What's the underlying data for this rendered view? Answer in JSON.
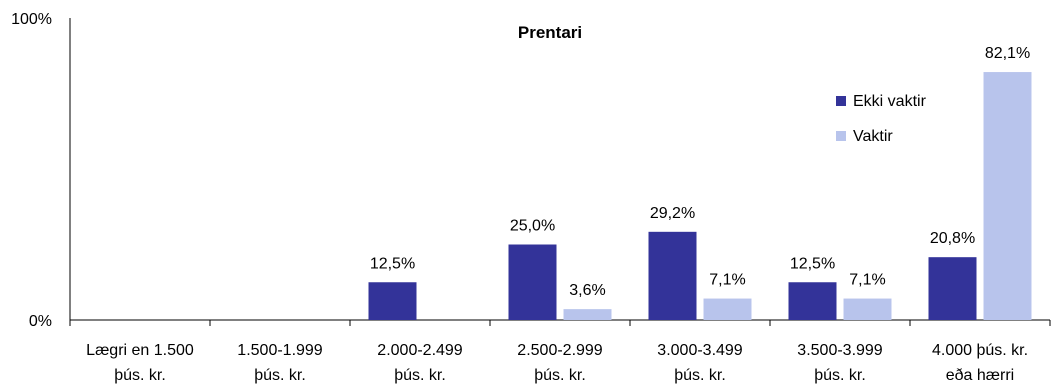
{
  "chart_data": {
    "type": "bar",
    "title": "Prentari",
    "categories": [
      [
        "Lægri en 1.500",
        "þús. kr."
      ],
      [
        "1.500-1.999",
        "þús. kr."
      ],
      [
        "2.000-2.499",
        "þús. kr."
      ],
      [
        "2.500-2.999",
        "þús. kr."
      ],
      [
        "3.000-3.499",
        "þús. kr."
      ],
      [
        "3.500-3.999",
        "þús. kr."
      ],
      [
        "4.000 þús. kr.",
        "eða hærri"
      ]
    ],
    "series": [
      {
        "name": "Ekki vaktir",
        "color": "#333399",
        "values": [
          null,
          null,
          12.5,
          25.0,
          29.2,
          12.5,
          20.8
        ],
        "labels": [
          "",
          "",
          "12,5%",
          "25,0%",
          "29,2%",
          "12,5%",
          "20,8%"
        ]
      },
      {
        "name": "Vaktir",
        "color": "#b8c4ec",
        "values": [
          null,
          null,
          null,
          3.6,
          7.1,
          7.1,
          82.1
        ],
        "labels": [
          "",
          "",
          "",
          "3,6%",
          "7,1%",
          "7,1%",
          "82,1%"
        ]
      }
    ],
    "y_tick_labels": [
      "0%",
      "100%"
    ],
    "ylim": [
      0,
      100
    ],
    "legend_position": "top-right",
    "grid": false
  }
}
